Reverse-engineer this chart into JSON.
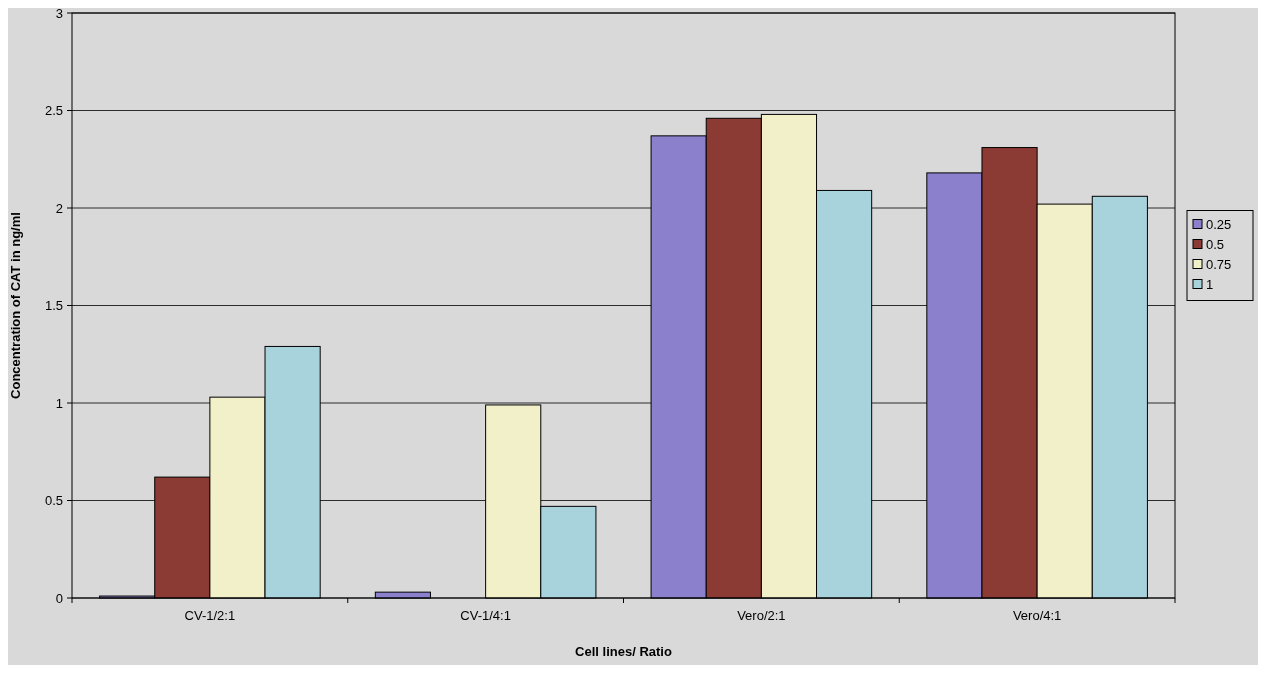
{
  "chart_data": {
    "type": "bar",
    "xlabel": "Cell lines/ Ratio",
    "ylabel": "Concentration of CAT in ng/ml",
    "categories": [
      "CV-1/2:1",
      "CV-1/4:1",
      "Vero/2:1",
      "Vero/4:1"
    ],
    "series": [
      {
        "name": "0.25",
        "color": "#8a80cc",
        "values": [
          0.01,
          0.03,
          2.37,
          2.18
        ]
      },
      {
        "name": "0.5",
        "color": "#8b3a34",
        "values": [
          0.62,
          0,
          2.46,
          2.31
        ]
      },
      {
        "name": "0.75",
        "color": "#f2f0c8",
        "values": [
          1.03,
          0.99,
          2.48,
          2.02
        ]
      },
      {
        "name": "1",
        "color": "#a9d3dc",
        "values": [
          1.29,
          0.47,
          2.09,
          2.06
        ]
      }
    ],
    "ylim": [
      0,
      3
    ],
    "yticks": [
      0,
      0.5,
      1,
      1.5,
      2,
      2.5,
      3
    ],
    "grid": "y",
    "legend": "right"
  }
}
